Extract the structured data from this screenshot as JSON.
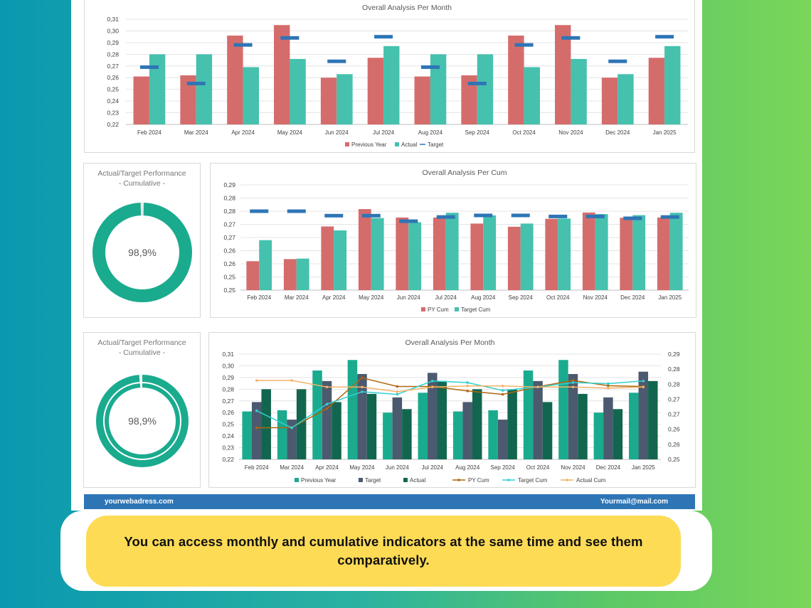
{
  "colors": {
    "prev_year": "#d56c6c",
    "actual_teal": "#45c1ae",
    "target_marker": "#2e75b6",
    "green_prev": "#1aab8f",
    "slate_target": "#4b5a6f",
    "dark_green_actual": "#12664f",
    "py_cum_line": "#b0660f",
    "target_cum_line": "#34cfd0",
    "actual_cum_line": "#f4b26a",
    "footer": "#2e75b6",
    "callout": "#fddb55"
  },
  "gauges": [
    {
      "title_line1": "Actual/Target Performance",
      "title_line2": "- Cumulative -",
      "value_text": "98,9%",
      "percent": 98.9,
      "style": "solid"
    },
    {
      "title_line1": "Actual/Target Performance",
      "title_line2": "- Cumulative -",
      "value_text": "98,9%",
      "percent": 98.9,
      "style": "double"
    }
  ],
  "footer": {
    "website": "yourwebadress.com",
    "email": "Yourmail@mail.com"
  },
  "callout": {
    "text": "You can access monthly and cumulative indicators at the same time and see them comparatively."
  },
  "chart_data": [
    {
      "type": "bar",
      "title": "Overall Analysis Per Month",
      "categories": [
        "Feb 2024",
        "Mar 2024",
        "Apr 2024",
        "May 2024",
        "Jun 2024",
        "Jul 2024",
        "Aug 2024",
        "Sep 2024",
        "Oct 2024",
        "Nov 2024",
        "Dec 2024",
        "Jan 2025"
      ],
      "ylim": [
        0.22,
        0.31
      ],
      "yticks": [
        "0,22",
        "0,23",
        "0,24",
        "0,25",
        "0,26",
        "0,27",
        "0,28",
        "0,29",
        "0,30",
        "0,31"
      ],
      "grid": true,
      "legend": "bottom",
      "series": [
        {
          "name": "Previous Year",
          "kind": "bar",
          "color_key": "prev_year",
          "values": [
            0.261,
            0.262,
            0.296,
            0.305,
            0.26,
            0.277,
            0.261,
            0.262,
            0.296,
            0.305,
            0.26,
            0.277
          ]
        },
        {
          "name": "Actual",
          "kind": "bar",
          "color_key": "actual_teal",
          "values": [
            0.28,
            0.28,
            0.269,
            0.276,
            0.263,
            0.287,
            0.28,
            0.28,
            0.269,
            0.276,
            0.263,
            0.287
          ]
        },
        {
          "name": "Target",
          "kind": "marker",
          "color_key": "target_marker",
          "values": [
            0.269,
            0.255,
            0.288,
            0.294,
            0.274,
            0.295,
            0.269,
            0.255,
            0.288,
            0.294,
            0.274,
            0.295
          ]
        }
      ]
    },
    {
      "type": "bar",
      "title": "Overall Analysis Per Cum",
      "categories": [
        "Feb 2024",
        "Mar 2024",
        "Apr 2024",
        "May 2024",
        "Jun 2024",
        "Jul 2024",
        "Aug 2024",
        "Sep 2024",
        "Oct 2024",
        "Nov 2024",
        "Dec 2024",
        "Jan 2025"
      ],
      "ylim": [
        0.25,
        0.29
      ],
      "yticks": [
        "0,25",
        "0,25",
        "0,26",
        "0,26",
        "0,27",
        "0,27",
        "0,28",
        "0,28",
        "0,29"
      ],
      "grid": true,
      "legend": "bottom",
      "series": [
        {
          "name": "PY Cum",
          "kind": "bar",
          "color_key": "prev_year",
          "values": [
            0.261,
            0.2618,
            0.2742,
            0.2808,
            0.2776,
            0.2776,
            0.2753,
            0.2741,
            0.2771,
            0.2795,
            0.2775,
            0.2776
          ]
        },
        {
          "name": "Target Cum",
          "kind": "bar",
          "color_key": "actual_teal",
          "values": [
            0.269,
            0.262,
            0.2727,
            0.2774,
            0.2758,
            0.2794,
            0.2784,
            0.2753,
            0.2772,
            0.2789,
            0.2785,
            0.2794
          ]
        },
        {
          "name": "",
          "kind": "marker",
          "color_key": "target_marker",
          "values": [
            0.28,
            0.28,
            0.2783,
            0.2783,
            0.2762,
            0.2778,
            0.2784,
            0.2784,
            0.278,
            0.278,
            0.2773,
            0.2778
          ]
        }
      ]
    },
    {
      "type": "bar",
      "title": "Overall Analysis Per Month",
      "categories": [
        "Feb 2024",
        "Mar 2024",
        "Apr 2024",
        "May 2024",
        "Jun 2024",
        "Jul 2024",
        "Aug 2024",
        "Sep 2024",
        "Oct 2024",
        "Nov 2024",
        "Dec 2024",
        "Jan 2025"
      ],
      "ylim": [
        0.22,
        0.31
      ],
      "yticks": [
        "0,22",
        "0,23",
        "0,24",
        "0,25",
        "0,26",
        "0,27",
        "0,28",
        "0,29",
        "0,30",
        "0,31"
      ],
      "y2lim": [
        0.25,
        0.29
      ],
      "y2ticks": [
        "0,25",
        "0,26",
        "0,26",
        "0,27",
        "0,27",
        "0,28",
        "0,28",
        "0,29"
      ],
      "grid": true,
      "legend": "bottom",
      "series": [
        {
          "name": "Previous Year",
          "kind": "bar",
          "color_key": "green_prev",
          "values": [
            0.261,
            0.262,
            0.296,
            0.305,
            0.26,
            0.277,
            0.261,
            0.262,
            0.296,
            0.305,
            0.26,
            0.277
          ]
        },
        {
          "name": "Target",
          "kind": "bar",
          "color_key": "slate_target",
          "values": [
            0.269,
            0.254,
            0.287,
            0.293,
            0.273,
            0.294,
            0.269,
            0.254,
            0.287,
            0.293,
            0.273,
            0.295
          ]
        },
        {
          "name": "Actual",
          "kind": "bar",
          "color_key": "dark_green_actual",
          "values": [
            0.28,
            0.28,
            0.269,
            0.276,
            0.263,
            0.287,
            0.28,
            0.28,
            0.269,
            0.276,
            0.263,
            0.287
          ]
        },
        {
          "name": "PY Cum",
          "kind": "line",
          "axis": "y2",
          "color_key": "py_cum_line",
          "values": [
            0.262,
            0.2621,
            0.2693,
            0.281,
            0.2777,
            0.2777,
            0.276,
            0.2747,
            0.2776,
            0.28,
            0.278,
            0.2777
          ]
        },
        {
          "name": "Target Cum",
          "kind": "line",
          "axis": "y2",
          "color_key": "target_cum_line",
          "values": [
            0.2685,
            0.262,
            0.271,
            0.2757,
            0.2747,
            0.2798,
            0.2792,
            0.2762,
            0.2775,
            0.2792,
            0.2788,
            0.2798
          ]
        },
        {
          "name": "Actual Cum",
          "kind": "line",
          "axis": "y2",
          "color_key": "actual_cum_line",
          "values": [
            0.28,
            0.28,
            0.2775,
            0.2775,
            0.2757,
            0.2775,
            0.2779,
            0.2779,
            0.2775,
            0.2775,
            0.2771,
            0.2775
          ]
        }
      ]
    }
  ]
}
